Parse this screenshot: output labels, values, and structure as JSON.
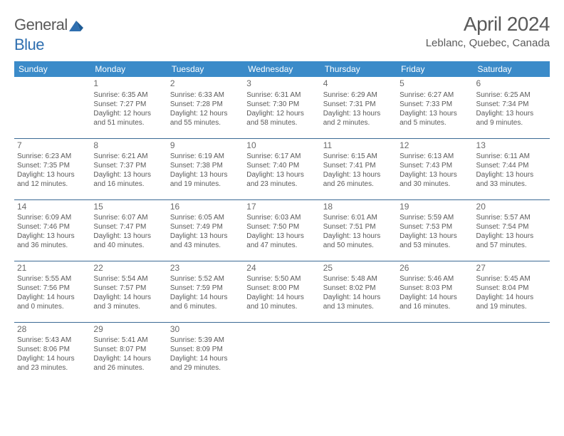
{
  "logo": {
    "word1": "General",
    "word2": "Blue"
  },
  "title": "April 2024",
  "location": "Leblanc, Quebec, Canada",
  "colors": {
    "header_bg": "#3b8bc9",
    "header_text": "#ffffff",
    "row_border": "#3b6a95",
    "body_text": "#5a5a5a",
    "title_text": "#5a5a5a",
    "logo_gray": "#5a5a5a",
    "logo_blue": "#2f6fb0",
    "page_bg": "#ffffff"
  },
  "weekdays": [
    "Sunday",
    "Monday",
    "Tuesday",
    "Wednesday",
    "Thursday",
    "Friday",
    "Saturday"
  ],
  "weeks": [
    [
      null,
      {
        "n": "1",
        "sr": "Sunrise: 6:35 AM",
        "ss": "Sunset: 7:27 PM",
        "d1": "Daylight: 12 hours",
        "d2": "and 51 minutes."
      },
      {
        "n": "2",
        "sr": "Sunrise: 6:33 AM",
        "ss": "Sunset: 7:28 PM",
        "d1": "Daylight: 12 hours",
        "d2": "and 55 minutes."
      },
      {
        "n": "3",
        "sr": "Sunrise: 6:31 AM",
        "ss": "Sunset: 7:30 PM",
        "d1": "Daylight: 12 hours",
        "d2": "and 58 minutes."
      },
      {
        "n": "4",
        "sr": "Sunrise: 6:29 AM",
        "ss": "Sunset: 7:31 PM",
        "d1": "Daylight: 13 hours",
        "d2": "and 2 minutes."
      },
      {
        "n": "5",
        "sr": "Sunrise: 6:27 AM",
        "ss": "Sunset: 7:33 PM",
        "d1": "Daylight: 13 hours",
        "d2": "and 5 minutes."
      },
      {
        "n": "6",
        "sr": "Sunrise: 6:25 AM",
        "ss": "Sunset: 7:34 PM",
        "d1": "Daylight: 13 hours",
        "d2": "and 9 minutes."
      }
    ],
    [
      {
        "n": "7",
        "sr": "Sunrise: 6:23 AM",
        "ss": "Sunset: 7:35 PM",
        "d1": "Daylight: 13 hours",
        "d2": "and 12 minutes."
      },
      {
        "n": "8",
        "sr": "Sunrise: 6:21 AM",
        "ss": "Sunset: 7:37 PM",
        "d1": "Daylight: 13 hours",
        "d2": "and 16 minutes."
      },
      {
        "n": "9",
        "sr": "Sunrise: 6:19 AM",
        "ss": "Sunset: 7:38 PM",
        "d1": "Daylight: 13 hours",
        "d2": "and 19 minutes."
      },
      {
        "n": "10",
        "sr": "Sunrise: 6:17 AM",
        "ss": "Sunset: 7:40 PM",
        "d1": "Daylight: 13 hours",
        "d2": "and 23 minutes."
      },
      {
        "n": "11",
        "sr": "Sunrise: 6:15 AM",
        "ss": "Sunset: 7:41 PM",
        "d1": "Daylight: 13 hours",
        "d2": "and 26 minutes."
      },
      {
        "n": "12",
        "sr": "Sunrise: 6:13 AM",
        "ss": "Sunset: 7:43 PM",
        "d1": "Daylight: 13 hours",
        "d2": "and 30 minutes."
      },
      {
        "n": "13",
        "sr": "Sunrise: 6:11 AM",
        "ss": "Sunset: 7:44 PM",
        "d1": "Daylight: 13 hours",
        "d2": "and 33 minutes."
      }
    ],
    [
      {
        "n": "14",
        "sr": "Sunrise: 6:09 AM",
        "ss": "Sunset: 7:46 PM",
        "d1": "Daylight: 13 hours",
        "d2": "and 36 minutes."
      },
      {
        "n": "15",
        "sr": "Sunrise: 6:07 AM",
        "ss": "Sunset: 7:47 PM",
        "d1": "Daylight: 13 hours",
        "d2": "and 40 minutes."
      },
      {
        "n": "16",
        "sr": "Sunrise: 6:05 AM",
        "ss": "Sunset: 7:49 PM",
        "d1": "Daylight: 13 hours",
        "d2": "and 43 minutes."
      },
      {
        "n": "17",
        "sr": "Sunrise: 6:03 AM",
        "ss": "Sunset: 7:50 PM",
        "d1": "Daylight: 13 hours",
        "d2": "and 47 minutes."
      },
      {
        "n": "18",
        "sr": "Sunrise: 6:01 AM",
        "ss": "Sunset: 7:51 PM",
        "d1": "Daylight: 13 hours",
        "d2": "and 50 minutes."
      },
      {
        "n": "19",
        "sr": "Sunrise: 5:59 AM",
        "ss": "Sunset: 7:53 PM",
        "d1": "Daylight: 13 hours",
        "d2": "and 53 minutes."
      },
      {
        "n": "20",
        "sr": "Sunrise: 5:57 AM",
        "ss": "Sunset: 7:54 PM",
        "d1": "Daylight: 13 hours",
        "d2": "and 57 minutes."
      }
    ],
    [
      {
        "n": "21",
        "sr": "Sunrise: 5:55 AM",
        "ss": "Sunset: 7:56 PM",
        "d1": "Daylight: 14 hours",
        "d2": "and 0 minutes."
      },
      {
        "n": "22",
        "sr": "Sunrise: 5:54 AM",
        "ss": "Sunset: 7:57 PM",
        "d1": "Daylight: 14 hours",
        "d2": "and 3 minutes."
      },
      {
        "n": "23",
        "sr": "Sunrise: 5:52 AM",
        "ss": "Sunset: 7:59 PM",
        "d1": "Daylight: 14 hours",
        "d2": "and 6 minutes."
      },
      {
        "n": "24",
        "sr": "Sunrise: 5:50 AM",
        "ss": "Sunset: 8:00 PM",
        "d1": "Daylight: 14 hours",
        "d2": "and 10 minutes."
      },
      {
        "n": "25",
        "sr": "Sunrise: 5:48 AM",
        "ss": "Sunset: 8:02 PM",
        "d1": "Daylight: 14 hours",
        "d2": "and 13 minutes."
      },
      {
        "n": "26",
        "sr": "Sunrise: 5:46 AM",
        "ss": "Sunset: 8:03 PM",
        "d1": "Daylight: 14 hours",
        "d2": "and 16 minutes."
      },
      {
        "n": "27",
        "sr": "Sunrise: 5:45 AM",
        "ss": "Sunset: 8:04 PM",
        "d1": "Daylight: 14 hours",
        "d2": "and 19 minutes."
      }
    ],
    [
      {
        "n": "28",
        "sr": "Sunrise: 5:43 AM",
        "ss": "Sunset: 8:06 PM",
        "d1": "Daylight: 14 hours",
        "d2": "and 23 minutes."
      },
      {
        "n": "29",
        "sr": "Sunrise: 5:41 AM",
        "ss": "Sunset: 8:07 PM",
        "d1": "Daylight: 14 hours",
        "d2": "and 26 minutes."
      },
      {
        "n": "30",
        "sr": "Sunrise: 5:39 AM",
        "ss": "Sunset: 8:09 PM",
        "d1": "Daylight: 14 hours",
        "d2": "and 29 minutes."
      },
      null,
      null,
      null,
      null
    ]
  ]
}
